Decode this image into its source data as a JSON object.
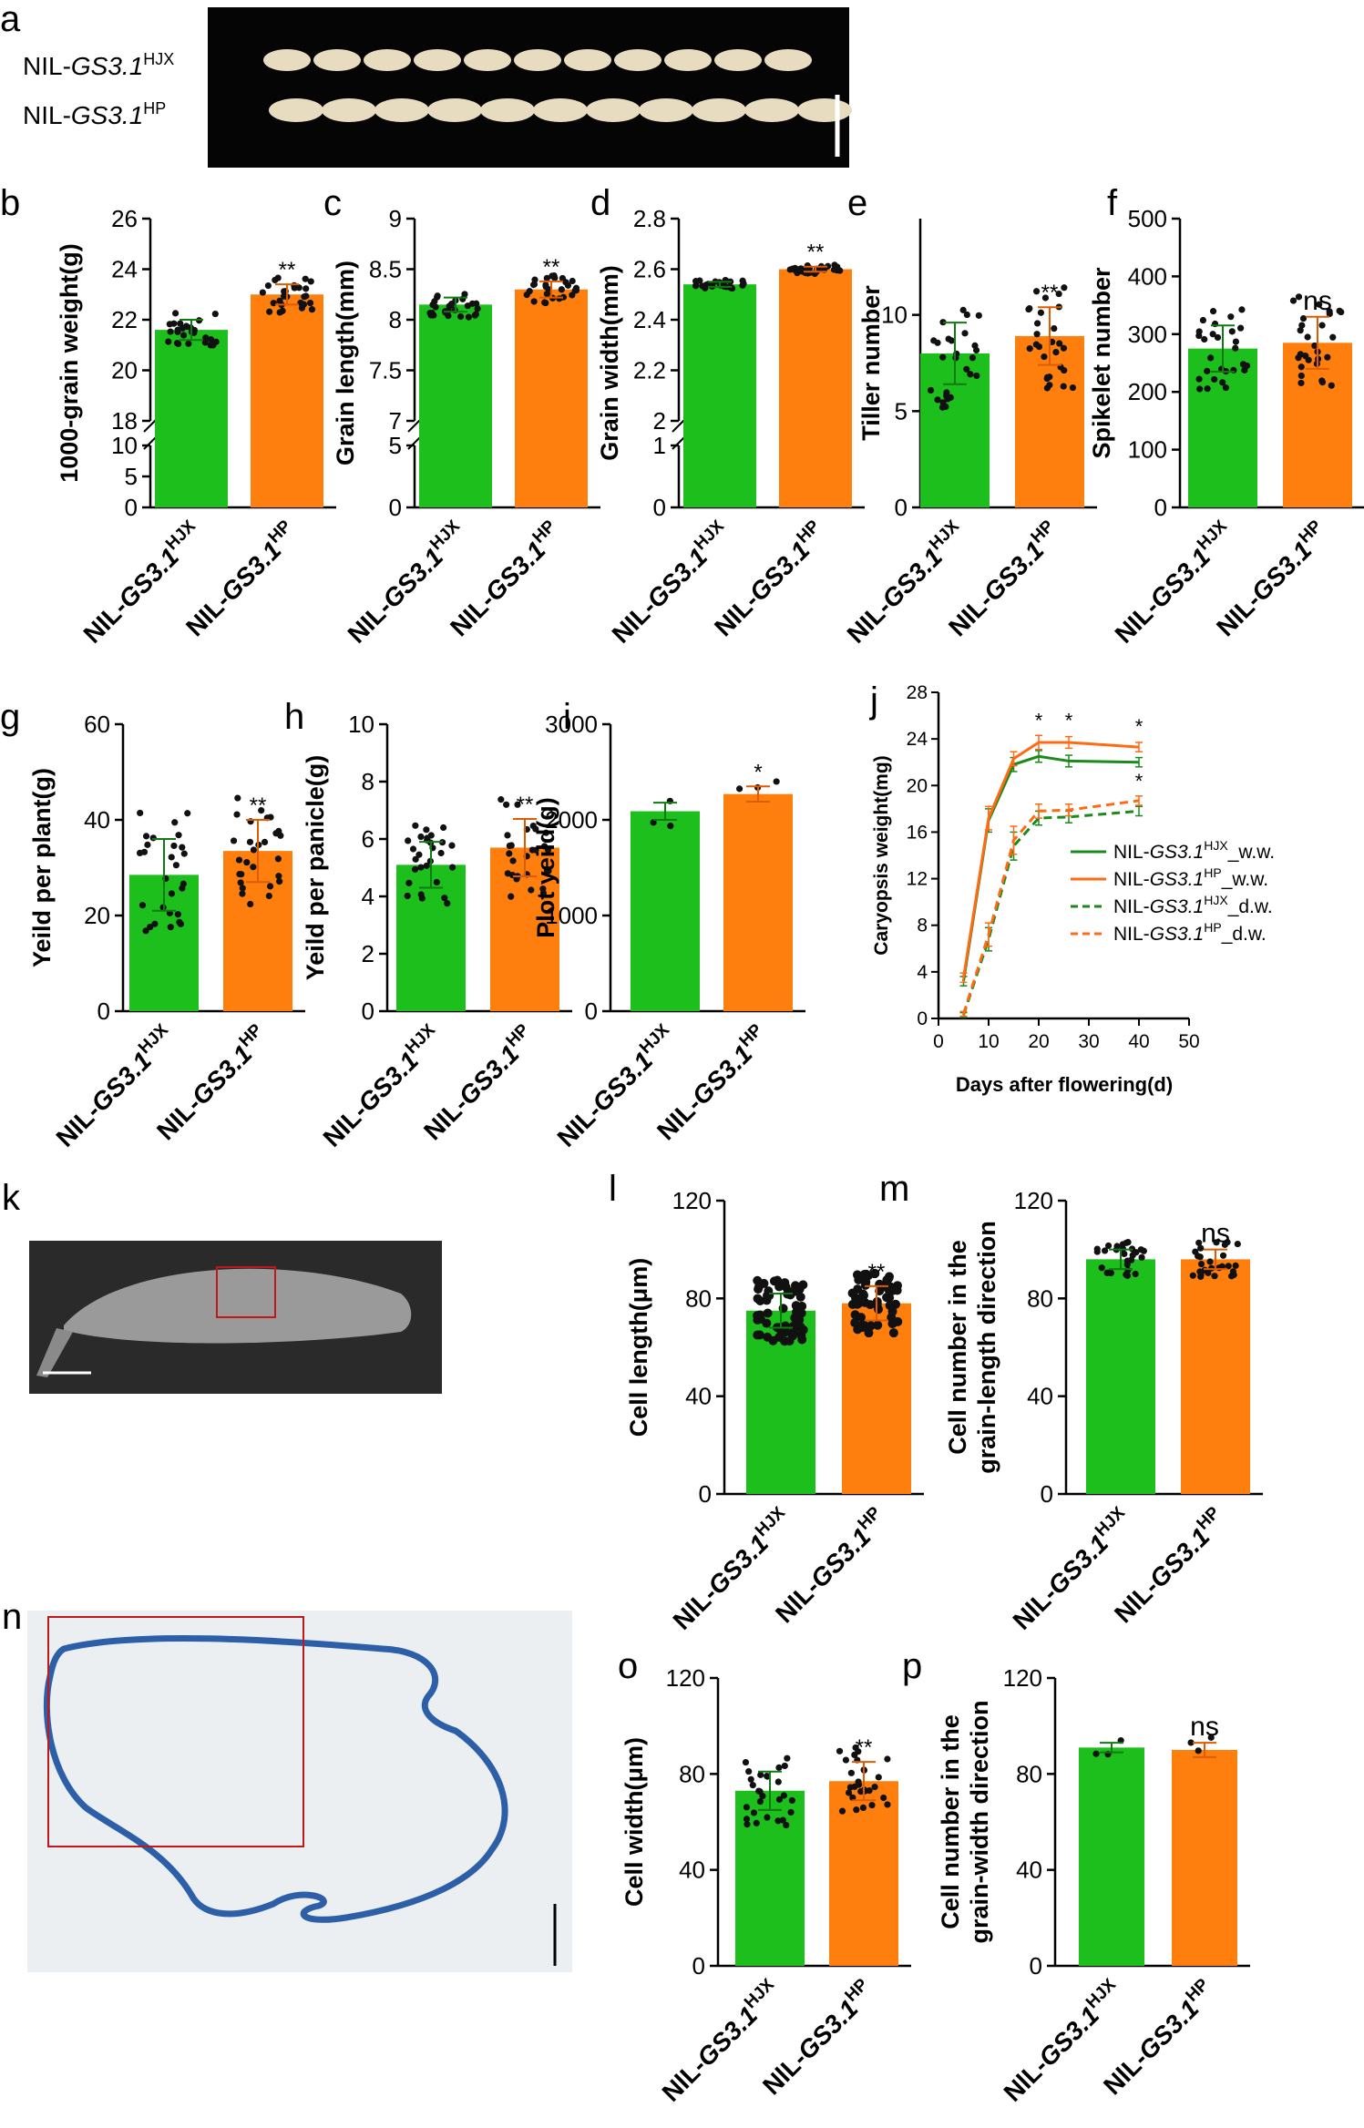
{
  "colors": {
    "hjx": "#1dbf1d",
    "hp": "#ff7f0e"
  },
  "panels": {
    "a": {
      "letter": "a",
      "row1": "NIL-GS3.1",
      "row1_sup": "HJX",
      "row2": "NIL-GS3.1",
      "row2_sup": "HP"
    },
    "k": {
      "letter": "k"
    },
    "n": {
      "letter": "n"
    }
  },
  "category_labels": {
    "hjx": {
      "prefix": "NIL-",
      "gene": "GS3.1",
      "sup": "HJX"
    },
    "hp": {
      "prefix": "NIL-",
      "gene": "GS3.1",
      "sup": "HP"
    },
    "hjx_alt": {
      "prefix": "NlL-",
      "gene": "GS3.1",
      "sup": "HJX"
    },
    "hp_alt": {
      "prefix": "NlL-",
      "gene": "GS3.1",
      "sup": "HP"
    }
  },
  "chart_data": [
    {
      "id": "b",
      "letter": "b",
      "type": "bar",
      "ylabel": "1000-grain weight(g)",
      "broken_axis": true,
      "lower_ticks": [
        0,
        5,
        10
      ],
      "upper_ticks": [
        18,
        20,
        22,
        24,
        26
      ],
      "categories": [
        "NIL-GS3.1HJX",
        "NIL-GS3.1HP"
      ],
      "values": [
        21.6,
        23.0
      ],
      "errors": [
        0.4,
        0.4
      ],
      "sig": [
        "",
        "**"
      ]
    },
    {
      "id": "c",
      "letter": "c",
      "type": "bar",
      "ylabel": "Grain length(mm)",
      "broken_axis": true,
      "lower_ticks": [
        0,
        5
      ],
      "upper_ticks": [
        7.0,
        7.5,
        8.0,
        8.5,
        9.0
      ],
      "categories": [
        "NIL-GS3.1HJX",
        "NIL-GS3.1HP"
      ],
      "values": [
        8.15,
        8.3
      ],
      "errors": [
        0.07,
        0.08
      ],
      "sig": [
        "",
        "**"
      ]
    },
    {
      "id": "d",
      "letter": "d",
      "type": "bar",
      "ylabel": "Grain width(mm)",
      "broken_axis": true,
      "lower_ticks": [
        0,
        1
      ],
      "upper_ticks": [
        2.0,
        2.2,
        2.4,
        2.6,
        2.8
      ],
      "categories": [
        "NIL-GS3.1HJX",
        "NIL-GS3.1HP"
      ],
      "values": [
        2.54,
        2.6
      ],
      "errors": [
        0.01,
        0.01
      ],
      "sig": [
        "",
        "**"
      ]
    },
    {
      "id": "e",
      "letter": "e",
      "type": "bar",
      "ylabel": "Tiller number",
      "ylim": [
        0,
        15
      ],
      "yticks": [
        0,
        5,
        10
      ],
      "categories": [
        "NIL-GS3.1HJX",
        "NIL-GS3.1HP"
      ],
      "values": [
        8.0,
        8.9
      ],
      "errors": [
        1.6,
        1.5
      ],
      "sig": [
        "",
        "**"
      ]
    },
    {
      "id": "f",
      "letter": "f",
      "type": "bar",
      "ylabel": "Spikelet number",
      "ylim": [
        0,
        500
      ],
      "yticks": [
        0,
        100,
        200,
        300,
        400,
        500
      ],
      "categories": [
        "NIL-GS3.1HJX",
        "NIL-GS3.1HP"
      ],
      "values": [
        275,
        285
      ],
      "errors": [
        40,
        45
      ],
      "sig": [
        "",
        "ns"
      ]
    },
    {
      "id": "g",
      "letter": "g",
      "type": "bar",
      "ylabel": "Yeild per plant(g)",
      "ylim": [
        0,
        60
      ],
      "yticks": [
        0,
        20,
        40,
        60
      ],
      "categories": [
        "NIL-GS3.1HJX",
        "NIL-GS3.1HP"
      ],
      "values": [
        28.5,
        33.5
      ],
      "errors": [
        7.5,
        6.5
      ],
      "sig": [
        "",
        "**"
      ]
    },
    {
      "id": "h",
      "letter": "h",
      "type": "bar",
      "ylabel": "Yeild per panicle(g)",
      "ylim": [
        0,
        10
      ],
      "yticks": [
        0,
        2,
        4,
        6,
        8,
        10
      ],
      "categories": [
        "NIL-GS3.1HJX",
        "NIL-GS3.1HP"
      ],
      "values": [
        5.1,
        5.7
      ],
      "errors": [
        0.8,
        1.0
      ],
      "sig": [
        "",
        "**"
      ]
    },
    {
      "id": "i",
      "letter": "i",
      "type": "bar",
      "ylabel": "Plot yeild(g)",
      "ylim": [
        0,
        3000
      ],
      "yticks": [
        0,
        1000,
        2000,
        3000
      ],
      "categories": [
        "NIL-GS3.1HJX",
        "NIL-GS3.1HP"
      ],
      "values": [
        2090,
        2270
      ],
      "errors": [
        90,
        80
      ],
      "sig": [
        "",
        "*"
      ]
    },
    {
      "id": "j",
      "letter": "j",
      "type": "line",
      "ylabel": "Caryopsis weight(mg)",
      "xlabel": "Days after flowering(d)",
      "xlim": [
        0,
        50
      ],
      "xticks": [
        0,
        10,
        20,
        30,
        40,
        50
      ],
      "ylim": [
        0,
        28
      ],
      "yticks": [
        0,
        4,
        8,
        12,
        16,
        20,
        24,
        28
      ],
      "x": [
        5,
        10,
        15,
        20,
        26,
        40
      ],
      "series": [
        {
          "name": "NIL-GS3.1HJX_w.w.",
          "label_prefix": "NIL-",
          "label_gene": "GS3.1",
          "label_sup": "HJX",
          "label_suffix": "_w.w.",
          "color": "#1a8a1a",
          "dash": false,
          "values": [
            3.2,
            17.0,
            21.8,
            22.5,
            22.1,
            22.0
          ],
          "errors": [
            0.4,
            1.0,
            0.6,
            0.5,
            0.5,
            0.4
          ]
        },
        {
          "name": "NIL-GS3.1HP_w.w.",
          "label_prefix": "NIL-",
          "label_gene": "GS3.1",
          "label_sup": "HP",
          "label_suffix": "_w.w.",
          "color": "#ff6a13",
          "dash": false,
          "values": [
            3.5,
            17.2,
            22.3,
            23.7,
            23.7,
            23.3
          ],
          "errors": [
            0.4,
            1.0,
            0.6,
            0.6,
            0.5,
            0.4
          ]
        },
        {
          "name": "NIL-GS3.1HJX_d.w.",
          "label_prefix": "NIL-",
          "label_gene": "GS3.1",
          "label_sup": "HJX",
          "label_suffix": "_d.w.",
          "color": "#1a8a1a",
          "dash": true,
          "values": [
            0.3,
            6.8,
            14.8,
            17.2,
            17.3,
            17.8
          ],
          "errors": [
            0.2,
            1.0,
            1.2,
            0.6,
            0.5,
            0.4
          ]
        },
        {
          "name": "NIL-GS3.1HP_d.w.",
          "label_prefix": "NIL-",
          "label_gene": "GS3.1",
          "label_sup": "HP",
          "label_suffix": "_d.w.",
          "color": "#ff6a13",
          "dash": true,
          "values": [
            0.4,
            7.2,
            15.3,
            17.8,
            17.9,
            18.7
          ],
          "errors": [
            0.2,
            1.0,
            1.2,
            0.6,
            0.5,
            0.4
          ]
        }
      ],
      "sig_marks": [
        {
          "x": 20,
          "label": "*",
          "y": 25.0
        },
        {
          "x": 26,
          "label": "*",
          "y": 25.0
        },
        {
          "x": 40,
          "label": "*",
          "y": 24.5
        },
        {
          "x": 40,
          "label": "*",
          "y": 19.8
        }
      ]
    },
    {
      "id": "l",
      "letter": "l",
      "type": "bar",
      "ylabel": "Cell length(μm)",
      "ylim": [
        0,
        120
      ],
      "yticks": [
        0,
        40,
        80,
        120
      ],
      "categories": [
        "NIL-GS3.1HJX",
        "NIL-GS3.1HP"
      ],
      "values": [
        75,
        78
      ],
      "errors": [
        7,
        7
      ],
      "sig": [
        "",
        "**"
      ]
    },
    {
      "id": "m",
      "letter": "m",
      "type": "bar",
      "ylabel_lines": [
        "Cell number in the",
        "grain-length direction"
      ],
      "ylim": [
        0,
        120
      ],
      "yticks": [
        0,
        40,
        80,
        120
      ],
      "categories": [
        "NIL-GS3.1HJX",
        "NIL-GS3.1HP"
      ],
      "values": [
        96,
        96
      ],
      "errors": [
        4,
        4
      ],
      "sig": [
        "",
        "ns"
      ]
    },
    {
      "id": "o",
      "letter": "o",
      "type": "bar",
      "ylabel": "Cell width(μm)",
      "ylim": [
        0,
        120
      ],
      "yticks": [
        0,
        40,
        80,
        120
      ],
      "categories": [
        "NIL-GS3.1HJX",
        "NIL-GS3.1HP"
      ],
      "values": [
        73,
        77
      ],
      "errors": [
        8,
        8
      ],
      "sig": [
        "",
        "**"
      ]
    },
    {
      "id": "p",
      "letter": "p",
      "type": "bar",
      "ylabel_lines": [
        "Cell number in the",
        "grain-width direction"
      ],
      "ylim": [
        0,
        120
      ],
      "yticks": [
        0,
        40,
        80,
        120
      ],
      "categories": [
        "NIL-GS3.1HJX",
        "NIL-GS3.1HP"
      ],
      "values": [
        91,
        90
      ],
      "errors": [
        2,
        3
      ],
      "sig": [
        "",
        "ns"
      ]
    }
  ]
}
